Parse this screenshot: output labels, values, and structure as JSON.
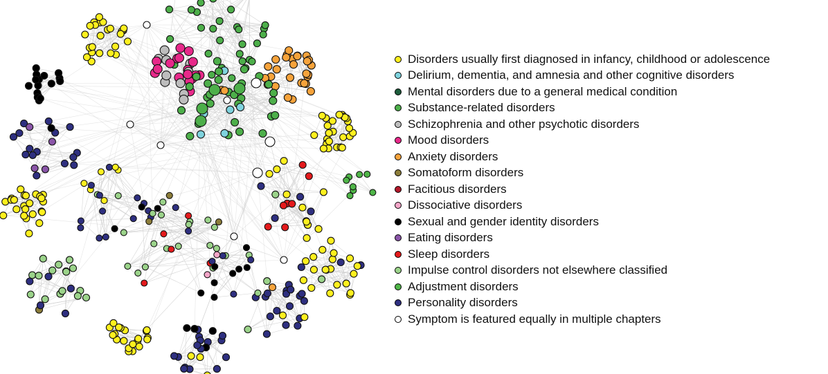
{
  "legend": [
    {
      "key": "childhood",
      "label": "Disorders usually first diagnosed in infancy, childhood or adolescence",
      "color": "#fff01e"
    },
    {
      "key": "cognitive",
      "label": "Delirium, dementia, and amnesia and other cognitive disorders",
      "color": "#7fd3de"
    },
    {
      "key": "medical",
      "label": "Mental disorders due to a general medical condition",
      "color": "#1d5c3b"
    },
    {
      "key": "substance",
      "label": "Substance-related disorders",
      "color": "#4daf4a"
    },
    {
      "key": "schizophrenia",
      "label": "Schizophrenia and other psychotic disorders",
      "color": "#bdbdbd"
    },
    {
      "key": "mood",
      "label": "Mood disorders",
      "color": "#e7298a"
    },
    {
      "key": "anxiety",
      "label": "Anxiety disorders",
      "color": "#f7a33b"
    },
    {
      "key": "somatoform",
      "label": "Somatoform disorders",
      "color": "#8c7d3a"
    },
    {
      "key": "facitious",
      "label": "Facitious disorders",
      "color": "#b2182b"
    },
    {
      "key": "dissociative",
      "label": "Dissociative disorders",
      "color": "#f4a6c8"
    },
    {
      "key": "sexual",
      "label": "Sexual and gender identity disorders",
      "color": "#000000"
    },
    {
      "key": "eating",
      "label": "Eating disorders",
      "color": "#8a55a8"
    },
    {
      "key": "sleep",
      "label": "Sleep disorders",
      "color": "#e41a1c"
    },
    {
      "key": "impulse",
      "label": "Impulse control disorders not elsewhere classified",
      "color": "#9bd38a"
    },
    {
      "key": "adjustment",
      "label": "Adjustment disorders",
      "color": "#4fb548"
    },
    {
      "key": "personality",
      "label": "Personality disorders",
      "color": "#2e2f80"
    },
    {
      "key": "multiple",
      "label": "Symptom is featured equally in multiple chapters",
      "color": "#ffffff"
    }
  ]
}
